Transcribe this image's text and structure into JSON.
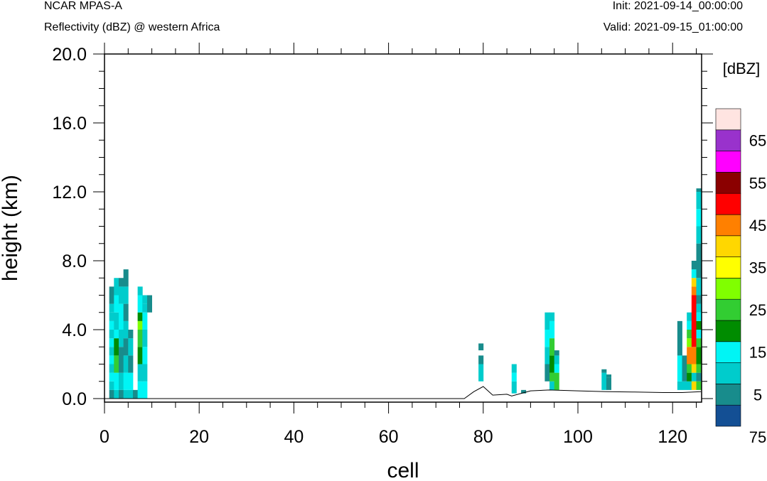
{
  "header": {
    "top_left_line1": "NCAR MPAS-A",
    "top_left_line2": "Reflectivity (dBZ) @ western Africa",
    "top_right_line1": "Init: 2021-09-14_00:00:00",
    "top_right_line2": "Valid: 2021-09-15_01:00:00"
  },
  "chart_data": {
    "type": "heatmap",
    "title": "Reflectivity (dBZ) @ western Africa",
    "xlabel": "cell",
    "ylabel": "height (km)",
    "xlim": [
      0,
      126
    ],
    "ylim": [
      0,
      20
    ],
    "x_ticks": [
      "0",
      "20",
      "40",
      "60",
      "80",
      "100",
      "120"
    ],
    "y_ticks": [
      "0.0",
      "4.0",
      "8.0",
      "12.0",
      "16.0",
      "20.0"
    ],
    "colorbar": {
      "unit_label": "[dBZ]",
      "labels": [
        "5",
        "15",
        "25",
        "35",
        "45",
        "55",
        "65",
        "75"
      ],
      "bins": [
        {
          "min": 0,
          "max": 5,
          "color": "#134f94"
        },
        {
          "min": 5,
          "max": 10,
          "color": "#188c8c"
        },
        {
          "min": 10,
          "max": 15,
          "color": "#00cccc"
        },
        {
          "min": 15,
          "max": 20,
          "color": "#00f5f5"
        },
        {
          "min": 20,
          "max": 25,
          "color": "#008c00"
        },
        {
          "min": 25,
          "max": 30,
          "color": "#32cd32"
        },
        {
          "min": 30,
          "max": 35,
          "color": "#80ff00"
        },
        {
          "min": 35,
          "max": 40,
          "color": "#ffff00"
        },
        {
          "min": 40,
          "max": 45,
          "color": "#ffd700"
        },
        {
          "min": 45,
          "max": 50,
          "color": "#ff8000"
        },
        {
          "min": 50,
          "max": 55,
          "color": "#ff0000"
        },
        {
          "min": 55,
          "max": 60,
          "color": "#8b0000"
        },
        {
          "min": 60,
          "max": 65,
          "color": "#ff00ff"
        },
        {
          "min": 65,
          "max": 70,
          "color": "#9932cc"
        },
        {
          "min": 70,
          "max": 75,
          "color": "#ffe4e1"
        }
      ]
    },
    "terrain_km": [
      [
        0,
        0
      ],
      [
        76,
        0
      ],
      [
        78,
        0.4
      ],
      [
        80,
        0.7
      ],
      [
        82,
        0.2
      ],
      [
        85,
        0.25
      ],
      [
        86,
        0.15
      ],
      [
        88,
        0.3
      ],
      [
        90,
        0.45
      ],
      [
        94,
        0.5
      ],
      [
        100,
        0.45
      ],
      [
        106,
        0.4
      ],
      [
        112,
        0.38
      ],
      [
        118,
        0.35
      ],
      [
        122,
        0.35
      ],
      [
        126,
        0.4
      ]
    ],
    "columns": [
      {
        "cell": 1,
        "cells": [
          [
            0,
            0.5,
            5
          ],
          [
            0.5,
            1,
            10
          ],
          [
            1,
            1.5,
            15
          ],
          [
            1.5,
            2,
            10
          ],
          [
            2,
            2.5,
            15
          ],
          [
            2.5,
            3,
            10
          ],
          [
            3,
            3.5,
            15
          ],
          [
            3.5,
            4,
            10
          ],
          [
            4,
            4.5,
            15
          ],
          [
            4.5,
            5,
            10
          ],
          [
            5,
            5.5,
            10
          ],
          [
            5.5,
            6,
            5
          ],
          [
            6,
            6.5,
            5
          ]
        ]
      },
      {
        "cell": 2,
        "cells": [
          [
            0,
            0.5,
            10
          ],
          [
            0.5,
            1.5,
            15
          ],
          [
            1.5,
            2.5,
            25
          ],
          [
            2.5,
            3.5,
            20
          ],
          [
            3.5,
            4,
            15
          ],
          [
            4,
            5,
            10
          ],
          [
            5,
            6,
            15
          ],
          [
            6,
            7,
            10
          ]
        ]
      },
      {
        "cell": 3,
        "cells": [
          [
            0,
            0.5,
            5
          ],
          [
            0.5,
            1.5,
            10
          ],
          [
            1.5,
            3,
            5
          ],
          [
            3,
            4,
            10
          ],
          [
            4,
            5.5,
            15
          ],
          [
            5.5,
            6.5,
            10
          ],
          [
            6.5,
            7,
            5
          ]
        ]
      },
      {
        "cell": 4,
        "cells": [
          [
            0,
            0.5,
            10
          ],
          [
            0.5,
            1.5,
            15
          ],
          [
            1.5,
            2.5,
            10
          ],
          [
            2.5,
            3.5,
            5
          ],
          [
            3.5,
            4.5,
            10
          ],
          [
            4.5,
            5.5,
            5
          ],
          [
            5.5,
            6.5,
            10
          ],
          [
            6.5,
            7.5,
            5
          ]
        ]
      },
      {
        "cell": 5,
        "cells": [
          [
            0,
            0.5,
            10
          ],
          [
            0.5,
            1.5,
            15
          ],
          [
            1.5,
            2.5,
            5
          ],
          [
            2.5,
            3.5,
            10
          ],
          [
            3.5,
            4,
            5
          ]
        ]
      },
      {
        "cell": 6,
        "cells": [
          [
            0,
            0.5,
            5
          ]
        ]
      },
      {
        "cell": 7,
        "cells": [
          [
            0,
            1,
            15
          ],
          [
            1,
            2,
            10
          ],
          [
            2,
            3,
            20
          ],
          [
            3,
            4,
            25
          ],
          [
            4,
            4.5,
            30
          ],
          [
            4.5,
            5,
            20
          ],
          [
            5,
            6,
            15
          ],
          [
            6,
            6.5,
            10
          ]
        ]
      },
      {
        "cell": 8,
        "cells": [
          [
            0,
            1,
            15
          ],
          [
            1,
            2,
            10
          ],
          [
            2,
            3,
            15
          ],
          [
            3,
            4,
            10
          ],
          [
            4,
            5,
            15
          ],
          [
            5,
            5.5,
            10
          ],
          [
            5.5,
            6,
            10
          ]
        ]
      },
      {
        "cell": 9,
        "cells": [
          [
            5,
            6,
            5
          ]
        ]
      },
      {
        "cell": 79,
        "cells": [
          [
            1,
            2,
            10
          ],
          [
            2,
            2.5,
            5
          ],
          [
            2.8,
            3.2,
            5
          ]
        ]
      },
      {
        "cell": 86,
        "cells": [
          [
            0.3,
            1,
            10
          ],
          [
            1,
            1.5,
            15
          ],
          [
            1.5,
            2,
            10
          ]
        ]
      },
      {
        "cell": 88,
        "cells": [
          [
            0.3,
            0.5,
            5
          ]
        ]
      },
      {
        "cell": 93,
        "cells": [
          [
            1,
            2,
            5
          ],
          [
            2,
            3,
            10
          ],
          [
            3,
            4,
            15
          ],
          [
            4,
            5,
            10
          ]
        ]
      },
      {
        "cell": 94,
        "cells": [
          [
            0.5,
            1,
            10
          ],
          [
            1,
            1.5,
            25
          ],
          [
            1.5,
            2.5,
            20
          ],
          [
            2.5,
            3.5,
            25
          ],
          [
            3.5,
            4.5,
            15
          ],
          [
            4.5,
            5,
            10
          ]
        ]
      },
      {
        "cell": 95,
        "cells": [
          [
            0.5,
            1.5,
            25
          ],
          [
            1.5,
            2,
            15
          ],
          [
            2,
            2.5,
            10
          ],
          [
            2.5,
            2.8,
            5
          ]
        ]
      },
      {
        "cell": 105,
        "cells": [
          [
            0.5,
            1.5,
            10
          ],
          [
            1.5,
            1.7,
            5
          ]
        ]
      },
      {
        "cell": 106,
        "cells": [
          [
            0.5,
            1.2,
            5
          ],
          [
            1.2,
            1.4,
            5
          ]
        ]
      },
      {
        "cell": 121,
        "cells": [
          [
            0.5,
            1,
            10
          ],
          [
            1,
            2.5,
            15
          ],
          [
            2.5,
            4.5,
            5
          ]
        ]
      },
      {
        "cell": 122,
        "cells": [
          [
            0.5,
            1,
            10
          ],
          [
            1,
            2.5,
            5
          ]
        ]
      },
      {
        "cell": 123,
        "cells": [
          [
            0.5,
            1,
            10
          ],
          [
            1,
            1.5,
            20
          ],
          [
            1.5,
            2,
            25
          ],
          [
            2,
            3,
            45
          ],
          [
            3,
            3.5,
            30
          ],
          [
            3.5,
            4,
            25
          ],
          [
            4,
            4.5,
            15
          ],
          [
            4.5,
            5,
            10
          ]
        ]
      },
      {
        "cell": 124,
        "cells": [
          [
            0.5,
            1,
            40
          ],
          [
            1,
            1.5,
            10
          ],
          [
            1.5,
            2,
            40
          ],
          [
            2,
            3,
            45
          ],
          [
            3,
            6,
            50
          ],
          [
            6,
            6.5,
            45
          ],
          [
            6.5,
            7,
            40
          ],
          [
            7,
            7.5,
            15
          ],
          [
            7.5,
            8,
            5
          ]
        ]
      },
      {
        "cell": 125,
        "cells": [
          [
            0.5,
            1,
            25
          ],
          [
            1,
            1.5,
            5
          ],
          [
            1.5,
            2,
            25
          ],
          [
            2,
            3,
            20
          ],
          [
            3,
            3.5,
            25
          ],
          [
            3.5,
            4,
            15
          ],
          [
            4,
            4.5,
            20
          ],
          [
            4.5,
            5,
            15
          ],
          [
            5,
            5.5,
            10
          ],
          [
            5.5,
            6,
            5
          ],
          [
            6,
            7,
            10
          ],
          [
            7,
            8,
            5
          ],
          [
            8,
            9,
            5
          ],
          [
            9,
            10,
            10
          ],
          [
            10,
            11,
            15
          ],
          [
            11,
            12,
            10
          ],
          [
            12,
            12.2,
            5
          ]
        ]
      }
    ]
  }
}
